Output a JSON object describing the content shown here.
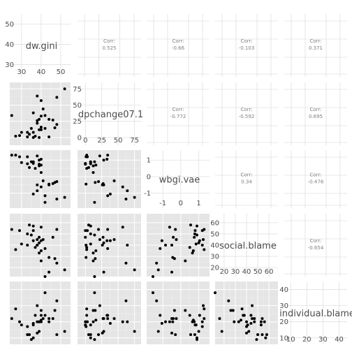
{
  "chart_data": {
    "type": "scatter",
    "variables": [
      "dw.gini",
      "dpchange07.1",
      "wbgi.vae",
      "social.blame",
      "individual.blame"
    ],
    "corr_label": "Corr:",
    "correlations": [
      {
        "pair": [
          "dw.gini",
          "dpchange07.1"
        ],
        "label": "0.525"
      },
      {
        "pair": [
          "dw.gini",
          "wbgi.vae"
        ],
        "label": "-0.66"
      },
      {
        "pair": [
          "dw.gini",
          "social.blame"
        ],
        "label": "-0.103"
      },
      {
        "pair": [
          "dw.gini",
          "individual.blame"
        ],
        "label": "0.371"
      },
      {
        "pair": [
          "dpchange07.1",
          "wbgi.vae"
        ],
        "label": "-0.772"
      },
      {
        "pair": [
          "dpchange07.1",
          "social.blame"
        ],
        "label": "-0.592"
      },
      {
        "pair": [
          "dpchange07.1",
          "individual.blame"
        ],
        "label": "0.695"
      },
      {
        "pair": [
          "wbgi.vae",
          "social.blame"
        ],
        "label": "0.34"
      },
      {
        "pair": [
          "wbgi.vae",
          "individual.blame"
        ],
        "label": "-0.476"
      },
      {
        "pair": [
          "social.blame",
          "individual.blame"
        ],
        "label": "-0.654"
      }
    ],
    "diag_ticks": [
      {
        "variable": "dw.gini",
        "ticks": [
          30,
          40,
          50
        ],
        "range": [
          24,
          55
        ]
      },
      {
        "variable": "dpchange07.1",
        "ticks": [
          0,
          25,
          50,
          75
        ],
        "range": [
          -12,
          85
        ]
      },
      {
        "variable": "wbgi.vae",
        "ticks": [
          -1,
          0,
          1
        ],
        "range": [
          -1.9,
          1.6
        ]
      },
      {
        "variable": "social.blame",
        "ticks": [
          20,
          30,
          40,
          50,
          60
        ],
        "range": [
          12,
          68
        ]
      },
      {
        "variable": "individual.blame",
        "ticks": [
          10,
          20,
          30,
          40
        ],
        "range": [
          6,
          45
        ]
      }
    ],
    "observations": [
      [
        52,
        75,
        -1.25,
        18,
        14
      ],
      [
        48,
        62,
        -1.35,
        24,
        33
      ],
      [
        42,
        14,
        -1.55,
        12,
        38
      ],
      [
        40,
        12,
        0.25,
        26,
        27
      ],
      [
        34,
        5,
        0.55,
        58,
        12
      ],
      [
        37,
        2,
        0.5,
        38,
        24
      ],
      [
        36,
        8,
        0.9,
        57,
        10
      ],
      [
        27,
        2,
        1.3,
        36,
        28
      ],
      [
        29,
        3,
        1.2,
        53,
        20
      ],
      [
        33,
        1,
        1.2,
        40,
        17
      ],
      [
        39,
        0,
        0.75,
        47,
        20
      ],
      [
        38,
        22,
        1.25,
        45,
        30
      ],
      [
        39,
        12,
        0.65,
        33,
        20
      ],
      [
        39,
        28,
        1.0,
        42,
        14
      ],
      [
        40,
        33,
        1.05,
        44,
        24
      ],
      [
        48,
        20,
        -0.3,
        54,
        12
      ],
      [
        44,
        28,
        -0.5,
        16,
        22
      ],
      [
        47,
        15,
        -0.35,
        28,
        27
      ],
      [
        46,
        27,
        -0.42,
        47,
        22
      ],
      [
        38,
        26,
        -0.5,
        40,
        13
      ],
      [
        41,
        44,
        -0.25,
        45,
        22
      ],
      [
        40,
        57,
        -0.62,
        56,
        20
      ],
      [
        38,
        64,
        -0.85,
        40,
        20
      ],
      [
        36,
        0,
        0.8,
        53,
        18
      ],
      [
        33,
        8,
        0.78,
        50,
        12
      ],
      [
        35,
        14,
        0.9,
        49,
        9
      ],
      [
        25,
        34,
        1.3,
        54,
        22
      ],
      [
        36,
        38,
        -1.05,
        44,
        19
      ],
      [
        42,
        34,
        -1.15,
        37,
        24
      ],
      [
        44,
        1,
        -0.45,
        29,
        20
      ],
      [
        40,
        16,
        0.7,
        35,
        21
      ],
      [
        30,
        8,
        0.85,
        41,
        18
      ]
    ],
    "grid": true
  }
}
